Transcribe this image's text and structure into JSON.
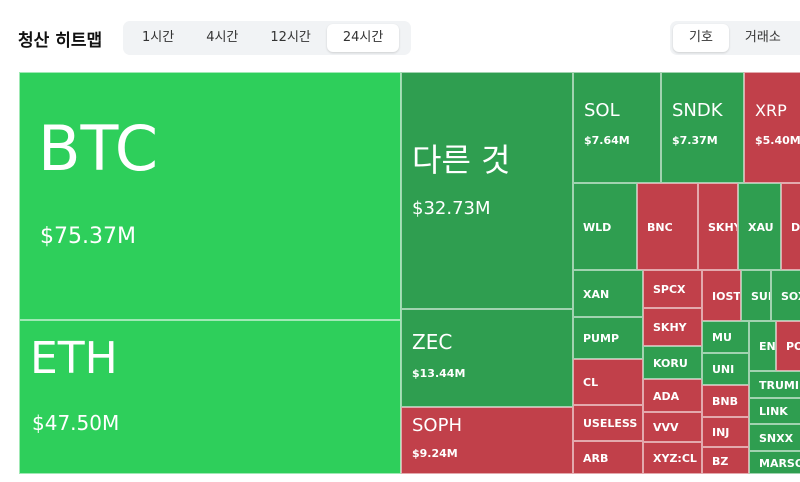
{
  "header": {
    "title": "청산 히트맵",
    "tabs": [
      "1시간",
      "4시간",
      "12시간",
      "24시간"
    ],
    "toggle": [
      "기호",
      "거래소"
    ]
  },
  "tiles": [
    {
      "label": "BTC",
      "value": "$75.37M"
    },
    {
      "label": "ETH",
      "value": "$47.50M"
    },
    {
      "label": "다른 것",
      "value": "$32.73M"
    },
    {
      "label": "ZEC",
      "value": "$13.44M"
    },
    {
      "label": "SOPH",
      "value": "$9.24M"
    },
    {
      "label": "SOL",
      "value": "$7.64M"
    },
    {
      "label": "SNDK",
      "value": "$7.37M"
    },
    {
      "label": "XRP",
      "value": "$5.40M"
    },
    {
      "label": "WLD"
    },
    {
      "label": "BNC"
    },
    {
      "label": "SKHYI"
    },
    {
      "label": "XAU"
    },
    {
      "label": "D"
    },
    {
      "label": "XAN"
    },
    {
      "label": "PUMP"
    },
    {
      "label": "CL"
    },
    {
      "label": "USELESS"
    },
    {
      "label": "ARB"
    },
    {
      "label": "SPCX"
    },
    {
      "label": "SKHY"
    },
    {
      "label": "KORU"
    },
    {
      "label": "ADA"
    },
    {
      "label": "VVV"
    },
    {
      "label": "XYZ:CL"
    },
    {
      "label": "IOST"
    },
    {
      "label": "SUI"
    },
    {
      "label": "SOX"
    },
    {
      "label": "MU"
    },
    {
      "label": "UNI"
    },
    {
      "label": "BNB"
    },
    {
      "label": "INJ"
    },
    {
      "label": "BZ"
    },
    {
      "label": "EN"
    },
    {
      "label": "PO"
    },
    {
      "label": "TRUMI"
    },
    {
      "label": "LINK"
    },
    {
      "label": "SNXX"
    },
    {
      "label": "MARSO"
    }
  ]
}
